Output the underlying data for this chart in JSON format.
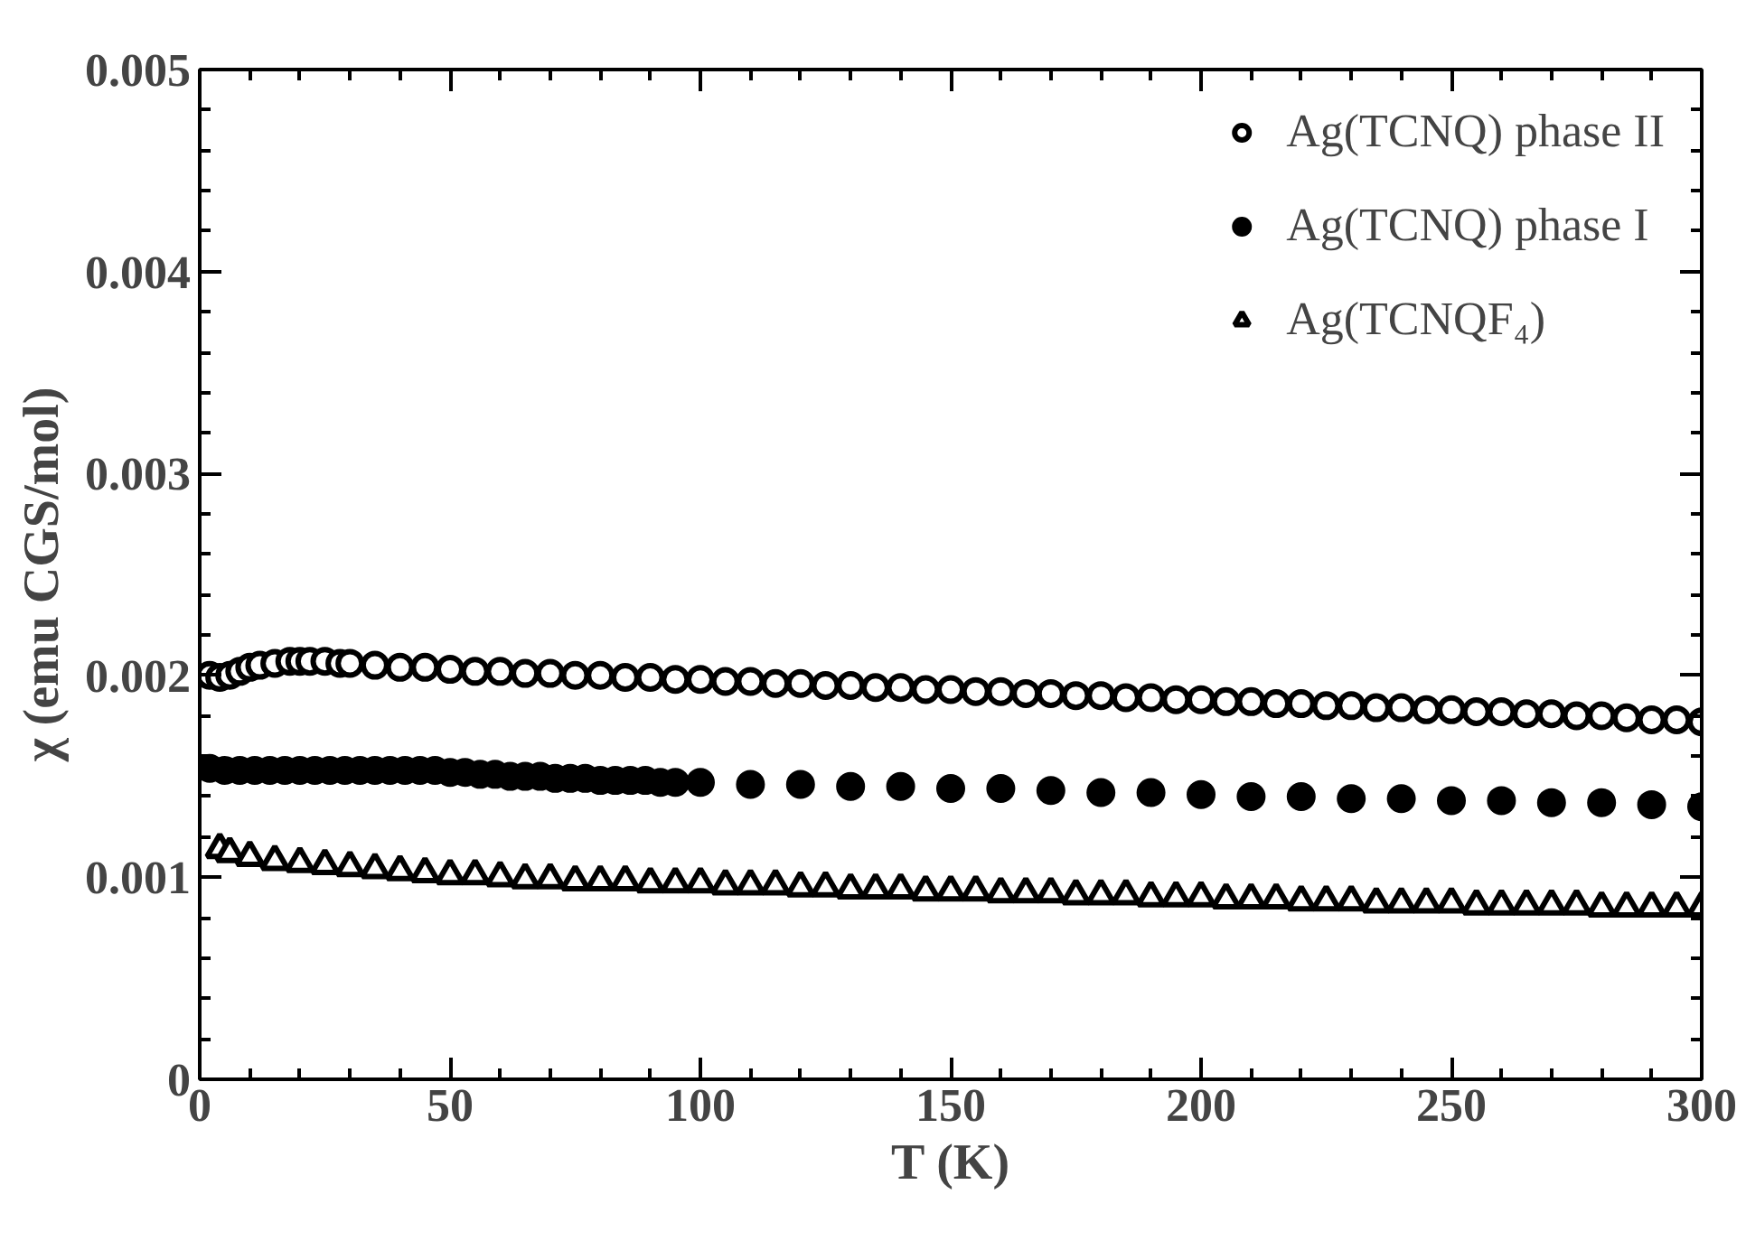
{
  "chart_data": {
    "type": "scatter",
    "xlabel": "T (K)",
    "ylabel": "χ (emu CGS/mol)",
    "xlim": [
      0,
      300
    ],
    "ylim": [
      0,
      0.005
    ],
    "xticks": [
      0,
      50,
      100,
      150,
      200,
      250,
      300
    ],
    "yticks": [
      {
        "value": 0,
        "label": "0"
      },
      {
        "value": 0.001,
        "label": "0.001"
      },
      {
        "value": 0.002,
        "label": "0.002"
      },
      {
        "value": 0.003,
        "label": "0.003"
      },
      {
        "value": 0.004,
        "label": "0.004"
      },
      {
        "value": 0.005,
        "label": "0.005"
      }
    ],
    "grid": false,
    "legend": "top right",
    "series": [
      {
        "name": "Ag(TCNQ) phase II",
        "color": "#ffffff",
        "marker": "circle",
        "x": [
          2,
          4,
          6,
          8,
          10,
          12,
          15,
          18,
          20,
          22,
          25,
          28,
          30,
          35,
          40,
          45,
          50,
          55,
          60,
          65,
          70,
          75,
          80,
          85,
          90,
          95,
          100,
          105,
          110,
          115,
          120,
          125,
          130,
          135,
          140,
          145,
          150,
          155,
          160,
          165,
          170,
          175,
          180,
          185,
          190,
          195,
          200,
          205,
          210,
          215,
          220,
          225,
          230,
          235,
          240,
          245,
          250,
          255,
          260,
          265,
          270,
          275,
          280,
          285,
          290,
          295,
          300
        ],
        "values": [
          0.002,
          0.00199,
          0.002,
          0.00202,
          0.00204,
          0.00205,
          0.00206,
          0.00207,
          0.00207,
          0.00207,
          0.00207,
          0.00206,
          0.00206,
          0.00205,
          0.00204,
          0.00204,
          0.00203,
          0.00202,
          0.00202,
          0.00201,
          0.00201,
          0.002,
          0.002,
          0.00199,
          0.00199,
          0.00198,
          0.00198,
          0.00197,
          0.00197,
          0.00196,
          0.00196,
          0.00195,
          0.00195,
          0.00194,
          0.00194,
          0.00193,
          0.00193,
          0.00192,
          0.00192,
          0.00191,
          0.00191,
          0.0019,
          0.0019,
          0.00189,
          0.00189,
          0.00188,
          0.00188,
          0.00187,
          0.00187,
          0.00186,
          0.00186,
          0.00185,
          0.00185,
          0.00184,
          0.00184,
          0.00183,
          0.00183,
          0.00182,
          0.00182,
          0.00181,
          0.00181,
          0.0018,
          0.0018,
          0.00179,
          0.00178,
          0.00178,
          0.00177
        ]
      },
      {
        "name": "Ag(TCNQ) phase I",
        "color": "#000000",
        "marker": "circle",
        "x": [
          2,
          5,
          8,
          11,
          14,
          17,
          20,
          23,
          26,
          29,
          32,
          35,
          38,
          41,
          44,
          47,
          50,
          53,
          56,
          59,
          62,
          65,
          68,
          71,
          74,
          77,
          80,
          83,
          86,
          89,
          92,
          95,
          100,
          110,
          120,
          130,
          140,
          150,
          160,
          170,
          180,
          190,
          200,
          210,
          220,
          230,
          240,
          250,
          260,
          270,
          280,
          290,
          300
        ],
        "values": [
          0.00154,
          0.00153,
          0.00153,
          0.00153,
          0.00153,
          0.00153,
          0.00153,
          0.00153,
          0.00153,
          0.00153,
          0.00153,
          0.00153,
          0.00153,
          0.00153,
          0.00153,
          0.00153,
          0.00152,
          0.00152,
          0.00151,
          0.00151,
          0.0015,
          0.0015,
          0.0015,
          0.00149,
          0.00149,
          0.00149,
          0.00148,
          0.00148,
          0.00148,
          0.00148,
          0.00147,
          0.00147,
          0.00147,
          0.00146,
          0.00146,
          0.00145,
          0.00145,
          0.00144,
          0.00144,
          0.00143,
          0.00142,
          0.00142,
          0.00141,
          0.0014,
          0.0014,
          0.00139,
          0.00139,
          0.00138,
          0.00138,
          0.00137,
          0.00137,
          0.00136,
          0.00135
        ]
      },
      {
        "name": "Ag(TCNQF₄)",
        "color": "#ffffff",
        "marker": "triangle",
        "x": [
          4,
          6,
          10,
          15,
          20,
          25,
          30,
          35,
          40,
          45,
          50,
          55,
          60,
          65,
          70,
          75,
          80,
          85,
          90,
          95,
          100,
          105,
          110,
          115,
          120,
          125,
          130,
          135,
          140,
          145,
          150,
          155,
          160,
          165,
          170,
          175,
          180,
          185,
          190,
          195,
          200,
          205,
          210,
          215,
          220,
          225,
          230,
          235,
          240,
          245,
          250,
          255,
          260,
          265,
          270,
          275,
          280,
          285,
          290,
          295,
          300
        ],
        "values": [
          0.00114,
          0.00112,
          0.0011,
          0.00108,
          0.00107,
          0.00106,
          0.00105,
          0.00104,
          0.00103,
          0.00102,
          0.00101,
          0.00101,
          0.001,
          0.00099,
          0.00099,
          0.00098,
          0.00098,
          0.00098,
          0.00097,
          0.00097,
          0.00097,
          0.00096,
          0.00096,
          0.00096,
          0.00095,
          0.00095,
          0.00094,
          0.00094,
          0.00094,
          0.00093,
          0.00093,
          0.00093,
          0.00092,
          0.00092,
          0.00092,
          0.00091,
          0.00091,
          0.00091,
          0.0009,
          0.0009,
          0.0009,
          0.00089,
          0.00089,
          0.00089,
          0.00088,
          0.00088,
          0.00088,
          0.00087,
          0.00087,
          0.00087,
          0.00087,
          0.00086,
          0.00086,
          0.00086,
          0.00086,
          0.00086,
          0.00085,
          0.00085,
          0.00085,
          0.00085,
          0.00085
        ]
      }
    ]
  }
}
